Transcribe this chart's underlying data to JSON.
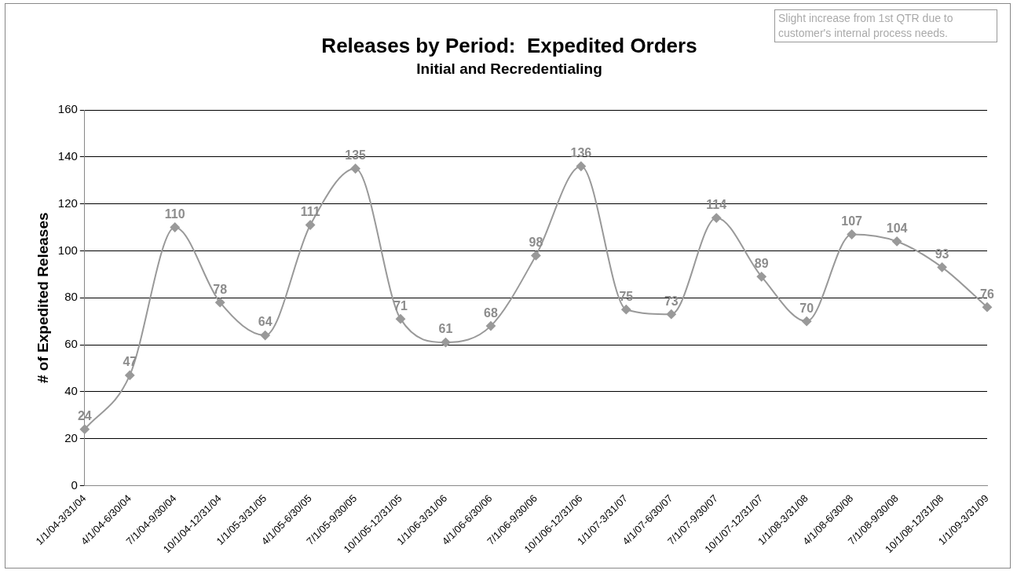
{
  "chart_data": {
    "type": "line",
    "title": "Releases by Period:  Expedited Orders",
    "subtitle": "Initial and Recredentialing",
    "ylabel": "# of Expedited Releases",
    "annotations": [
      "Slight increase from 1st QTR due to customer's internal process needs."
    ],
    "categories": [
      "1/1/04-3/31/04",
      "4/1/04-6/30/04",
      "7/1/04-9/30/04",
      "10/1/04-12/31/04",
      "1/1/05-3/31/05",
      "4/1/05-6/30/05",
      "7/1/05-9/30/05",
      "10/1/05-12/31/05",
      "1/1/06-3/31/06",
      "4/1/06-6/30/06",
      "7/1/06-9/30/06",
      "10/1/06-12/31/06",
      "1/1/07-3/31/07",
      "4/1/07-6/30/07",
      "7/1/07-9/30/07",
      "10/1/07-12/31/07",
      "1/1/08-3/31/08",
      "4/1/08-6/30/08",
      "7/1/08-9/30/08",
      "10/1/08-12/31/08",
      "1/1/09-3/31/09"
    ],
    "values": [
      24,
      47,
      110,
      78,
      64,
      111,
      135,
      71,
      61,
      68,
      98,
      136,
      75,
      73,
      114,
      89,
      70,
      107,
      104,
      93,
      76
    ],
    "color": "#999999",
    "marker": "diamond",
    "grid": "y",
    "data_labels": true,
    "legend": false,
    "ylim": [
      0,
      160
    ],
    "yticks": [
      0,
      20,
      40,
      60,
      80,
      100,
      120,
      140,
      160
    ]
  }
}
